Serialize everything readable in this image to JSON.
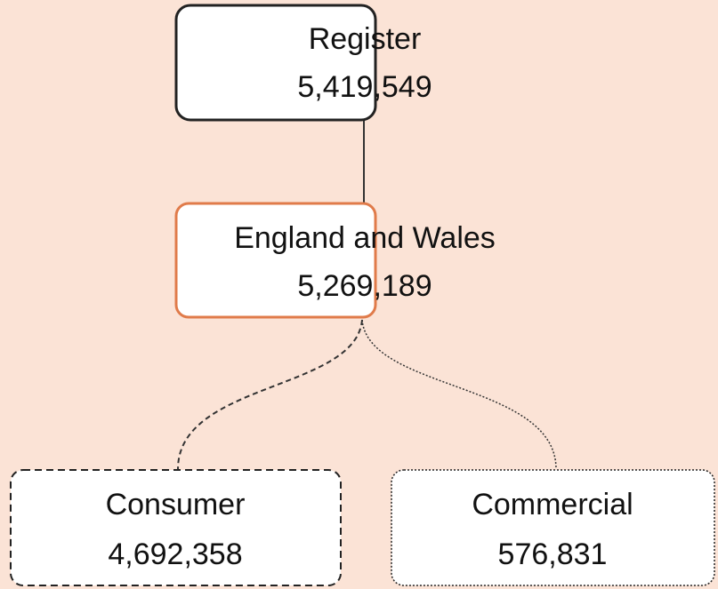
{
  "nodes": [
    {
      "label": "Register",
      "value": "5,419,549"
    },
    {
      "label": "England and Wales",
      "value": "5,269,189"
    },
    {
      "label": "Consumer",
      "value": "4,692,358"
    },
    {
      "label": "Commercial",
      "value": "576,831"
    }
  ]
}
